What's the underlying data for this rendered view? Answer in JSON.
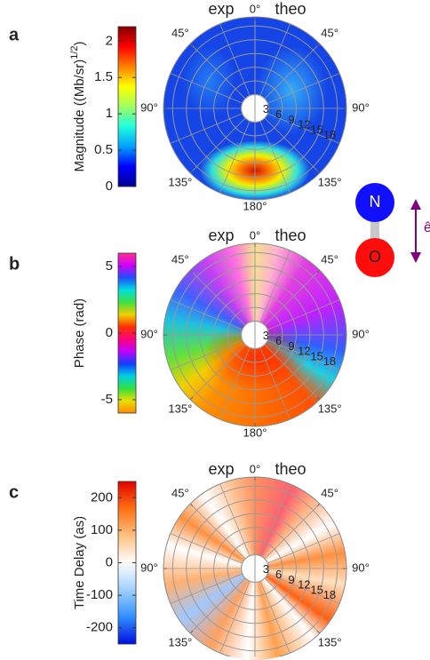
{
  "chart_data": [
    {
      "type": "polar-heatmap",
      "panel": "a",
      "left_label": "exp",
      "right_label": "theo",
      "colorbar_label": [
        "Magnitude ((Mb/sr)",
        "1/2",
        ")"
      ],
      "clim": [
        0,
        2.2
      ],
      "cticks": [
        0,
        0.5,
        1,
        1.5,
        2
      ],
      "colormap": [
        "#00008f",
        "#0000ff",
        "#00a0ff",
        "#20ffdf",
        "#a0ff60",
        "#ffff00",
        "#ff8000",
        "#ff0000",
        "#800000"
      ],
      "angle_ticks": [
        {
          "value": 0,
          "label": "0°"
        },
        {
          "value": 45,
          "label": "45°"
        },
        {
          "value": 90,
          "label": "90°"
        },
        {
          "value": 135,
          "label": "135°"
        },
        {
          "value": 180,
          "label": "180°"
        }
      ],
      "rlim": [
        0,
        20
      ],
      "rticks": [
        3,
        6,
        9,
        12,
        15,
        18
      ]
    },
    {
      "type": "polar-heatmap",
      "panel": "b",
      "left_label": "exp",
      "right_label": "theo",
      "colorbar_label": "Phase (rad)",
      "clim": [
        -6,
        6
      ],
      "cticks": [
        -5,
        0,
        5
      ],
      "colormap": [
        "#ff8a00",
        "#e8e000",
        "#30e040",
        "#00d0e0",
        "#1040ff",
        "#c000ff",
        "#ff0080",
        "#ff3000",
        "#f0d000",
        "#40e040",
        "#00e0e0",
        "#2050ff",
        "#d000ff",
        "#ff3090"
      ],
      "angle_ticks": [
        {
          "value": 0,
          "label": "0°"
        },
        {
          "value": 45,
          "label": "45°"
        },
        {
          "value": 90,
          "label": "90°"
        },
        {
          "value": 135,
          "label": "135°"
        },
        {
          "value": 180,
          "label": "180°"
        }
      ],
      "rlim": [
        0,
        20
      ],
      "rticks": [
        3,
        6,
        9,
        12,
        15,
        18
      ]
    },
    {
      "type": "polar-heatmap",
      "panel": "c",
      "left_label": "exp",
      "right_label": "theo",
      "colorbar_label": "Time Delay (as)",
      "clim": [
        -250,
        250
      ],
      "cticks": [
        -200,
        -100,
        0,
        100,
        200
      ],
      "colormap": [
        "#0010e0",
        "#3090ff",
        "#a0d0ff",
        "#ffffff",
        "#ffc080",
        "#ff7010",
        "#e00000"
      ],
      "angle_ticks": [
        {
          "value": 0,
          "label": "0°"
        },
        {
          "value": 45,
          "label": "45°"
        },
        {
          "value": 90,
          "label": "90°"
        },
        {
          "value": 135,
          "label": "135°"
        },
        {
          "value": 180,
          "label": "180°"
        }
      ],
      "rlim": [
        0,
        20
      ],
      "rticks": [
        3,
        6,
        9,
        12,
        15,
        18
      ]
    }
  ],
  "molecule": {
    "atoms": [
      "N",
      "O"
    ],
    "polarization": "ê"
  }
}
